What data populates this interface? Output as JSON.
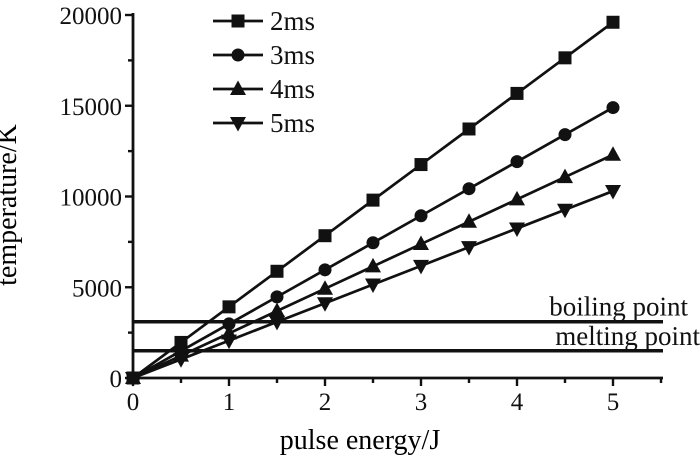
{
  "figure": {
    "background": "#ffffff",
    "ink_color": "#111111"
  },
  "chart_data": {
    "type": "line",
    "title": "",
    "xlabel": "pulse energy/J",
    "ylabel": "temperature/K",
    "xlim": [
      0,
      5.5
    ],
    "ylim": [
      0,
      20000
    ],
    "x_major_ticks": [
      0,
      1,
      2,
      3,
      4,
      5
    ],
    "x_minor_step": 0.5,
    "y_major_ticks": [
      0,
      5000,
      10000,
      15000,
      20000
    ],
    "y_minor_step": 2500,
    "grid": false,
    "legend_position": "top-inside-left",
    "x": [
      0,
      0.5,
      1,
      1.5,
      2,
      2.5,
      3,
      3.5,
      4,
      4.5,
      5
    ],
    "series": [
      {
        "name": "2ms",
        "marker": "square",
        "color": "#111111",
        "values": [
          0,
          1960,
          3920,
          5880,
          7840,
          9800,
          11760,
          13720,
          15680,
          17640,
          19600
        ]
      },
      {
        "name": "3ms",
        "marker": "circle",
        "color": "#111111",
        "values": [
          0,
          1490,
          2980,
          4470,
          5960,
          7450,
          8940,
          10430,
          11920,
          13410,
          14900
        ]
      },
      {
        "name": "4ms",
        "marker": "triangle-up",
        "color": "#111111",
        "values": [
          0,
          1230,
          2460,
          3690,
          4920,
          6150,
          7380,
          8610,
          9840,
          11070,
          12300
        ]
      },
      {
        "name": "5ms",
        "marker": "triangle-down",
        "color": "#111111",
        "values": [
          0,
          1030,
          2060,
          3090,
          4120,
          5150,
          6180,
          7210,
          8240,
          9270,
          10300
        ]
      }
    ],
    "reference_lines": [
      {
        "label": "boiling point",
        "value": 3100
      },
      {
        "label": "melting point",
        "value": 1500
      }
    ]
  }
}
